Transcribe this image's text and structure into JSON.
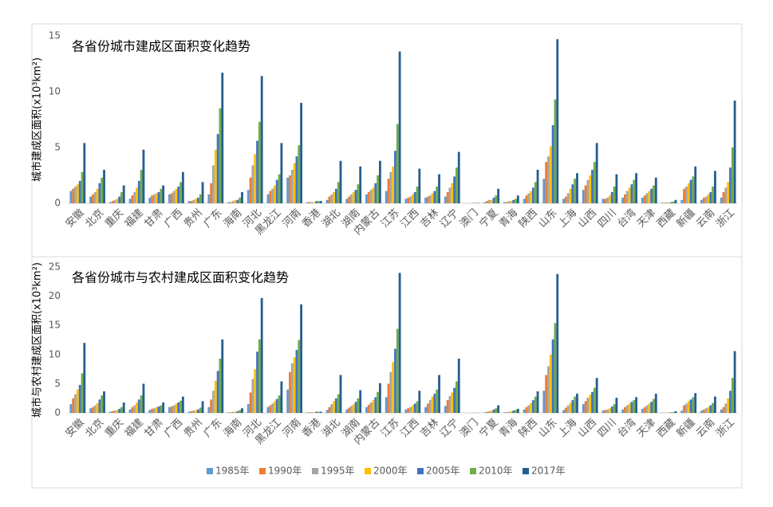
{
  "chart_data": [
    {
      "type": "bar",
      "title": "各省份城市建成区面积变化趋势",
      "y_label": "城市建成区面积(x10³km²)",
      "categories": [
        "安徽",
        "北京",
        "重庆",
        "福建",
        "甘肃",
        "广西",
        "贵州",
        "广东",
        "海南",
        "河北",
        "黑龙江",
        "河南",
        "香港",
        "湖北",
        "湖南",
        "内蒙古",
        "江苏",
        "江西",
        "吉林",
        "辽宁",
        "澳门",
        "宁夏",
        "青海",
        "陕西",
        "山东",
        "上海",
        "山西",
        "四川",
        "台湾",
        "天津",
        "西藏",
        "新疆",
        "云南",
        "浙江"
      ],
      "ylim": [
        0,
        15
      ],
      "yticks": [
        0,
        5,
        10,
        15
      ],
      "series": [
        {
          "color": "#5b9bd5",
          "values": [
            1.1,
            0.6,
            0.1,
            0.4,
            0.5,
            0.8,
            0.2,
            0.8,
            0.1,
            1.2,
            0.8,
            2.3,
            0.1,
            0.3,
            0.4,
            0.8,
            1.1,
            0.4,
            0.5,
            0.6,
            0.01,
            0.1,
            0.1,
            0.4,
            2.2,
            0.4,
            1.2,
            0.4,
            0.5,
            0.5,
            0.05,
            0.3,
            0.3,
            0.5
          ]
        },
        {
          "color": "#ed7d31",
          "values": [
            1.3,
            0.8,
            0.2,
            0.7,
            0.7,
            0.9,
            0.2,
            1.8,
            0.1,
            2.3,
            1.1,
            2.5,
            0.1,
            0.6,
            0.6,
            1.0,
            2.2,
            0.5,
            0.6,
            1.0,
            0.01,
            0.2,
            0.1,
            0.7,
            3.7,
            0.6,
            1.6,
            0.4,
            0.8,
            0.7,
            0.05,
            1.3,
            0.5,
            1.0
          ]
        },
        {
          "color": "#a5a5a5",
          "values": [
            1.5,
            1.0,
            0.3,
            1.0,
            0.8,
            1.1,
            0.3,
            3.4,
            0.2,
            3.4,
            1.3,
            3.0,
            0.1,
            0.8,
            0.8,
            1.2,
            2.8,
            0.6,
            0.7,
            1.4,
            0.02,
            0.3,
            0.2,
            0.9,
            4.2,
            0.9,
            2.1,
            0.5,
            1.1,
            0.9,
            0.07,
            1.5,
            0.6,
            1.4
          ]
        },
        {
          "color": "#ffc000",
          "values": [
            1.7,
            1.3,
            0.4,
            1.4,
            0.9,
            1.3,
            0.4,
            4.8,
            0.3,
            4.4,
            1.6,
            3.6,
            0.1,
            1.0,
            1.0,
            1.4,
            3.3,
            0.8,
            0.9,
            1.8,
            0.02,
            0.3,
            0.2,
            1.1,
            5.1,
            1.3,
            2.5,
            0.7,
            1.4,
            1.1,
            0.08,
            1.8,
            0.8,
            1.9
          ]
        },
        {
          "color": "#4472c4",
          "values": [
            2.0,
            1.8,
            0.6,
            2.0,
            1.0,
            1.5,
            0.5,
            6.2,
            0.3,
            5.6,
            2.1,
            4.2,
            0.2,
            1.3,
            1.2,
            1.8,
            4.7,
            1.0,
            1.1,
            2.4,
            0.03,
            0.5,
            0.3,
            1.4,
            7.0,
            1.7,
            3.0,
            1.0,
            1.7,
            1.3,
            0.1,
            2.1,
            1.0,
            3.2
          ]
        },
        {
          "color": "#70ad47",
          "values": [
            2.8,
            2.3,
            1.0,
            3.0,
            1.3,
            1.9,
            0.8,
            8.5,
            0.5,
            7.3,
            2.6,
            5.2,
            0.2,
            1.9,
            1.7,
            2.5,
            7.1,
            1.5,
            1.5,
            3.2,
            0.03,
            0.7,
            0.4,
            1.9,
            9.3,
            2.2,
            3.7,
            1.5,
            2.1,
            1.6,
            0.15,
            2.4,
            1.5,
            5.0
          ]
        },
        {
          "color": "#255e91",
          "values": [
            5.4,
            3.0,
            1.6,
            4.8,
            1.6,
            2.8,
            1.9,
            11.7,
            1.0,
            11.4,
            5.4,
            9.0,
            0.2,
            3.8,
            3.3,
            3.8,
            13.6,
            3.1,
            2.6,
            4.6,
            0.03,
            1.3,
            0.7,
            3.0,
            14.7,
            2.7,
            5.4,
            2.6,
            2.7,
            2.3,
            0.3,
            3.3,
            2.9,
            9.2
          ]
        }
      ]
    },
    {
      "type": "bar",
      "title": "各省份城市与农村建成区面积变化趋势",
      "y_label": "城市与农村建成区面积(x10³km²)",
      "categories": [
        "安徽",
        "北京",
        "重庆",
        "福建",
        "甘肃",
        "广西",
        "贵州",
        "广东",
        "海南",
        "河北",
        "黑龙江",
        "河南",
        "香港",
        "湖北",
        "湖南",
        "内蒙古",
        "江苏",
        "江西",
        "吉林",
        "辽宁",
        "澳门",
        "宁夏",
        "青海",
        "陕西",
        "山东",
        "上海",
        "山西",
        "四川",
        "台湾",
        "天津",
        "西藏",
        "新疆",
        "云南",
        "浙江"
      ],
      "ylim": [
        0,
        25
      ],
      "yticks": [
        0,
        5,
        10,
        15,
        20,
        25
      ],
      "series": [
        {
          "name": "1985年",
          "color": "#5b9bd5",
          "values": [
            1.5,
            0.8,
            0.2,
            0.6,
            0.5,
            1.0,
            0.2,
            1.0,
            0.1,
            1.5,
            1.0,
            4.0,
            0.1,
            0.5,
            0.6,
            1.0,
            2.7,
            0.6,
            1.0,
            1.2,
            0.01,
            0.1,
            0.1,
            0.6,
            3.8,
            0.5,
            1.5,
            0.4,
            0.6,
            0.7,
            0.05,
            0.4,
            0.4,
            0.6
          ]
        },
        {
          "name": "1990年",
          "color": "#ed7d31",
          "values": [
            2.5,
            1.0,
            0.3,
            1.0,
            0.7,
            1.1,
            0.3,
            2.3,
            0.1,
            3.5,
            1.3,
            7.0,
            0.1,
            1.0,
            0.9,
            1.4,
            5.0,
            0.8,
            1.6,
            2.2,
            0.01,
            0.2,
            0.1,
            1.0,
            6.5,
            0.9,
            2.0,
            0.5,
            1.0,
            1.0,
            0.05,
            1.3,
            0.6,
            1.0
          ]
        },
        {
          "name": "1995年",
          "color": "#a5a5a5",
          "values": [
            3.2,
            1.3,
            0.4,
            1.3,
            0.8,
            1.3,
            0.4,
            3.8,
            0.2,
            5.8,
            1.6,
            8.5,
            0.1,
            1.5,
            1.2,
            1.8,
            7.0,
            1.0,
            2.2,
            2.9,
            0.02,
            0.3,
            0.2,
            1.3,
            8.0,
            1.3,
            2.6,
            0.6,
            1.3,
            1.3,
            0.07,
            1.6,
            0.8,
            1.6
          ]
        },
        {
          "name": "2000年",
          "color": "#ffc000",
          "values": [
            4.0,
            1.7,
            0.5,
            1.8,
            1.0,
            1.6,
            0.5,
            5.5,
            0.2,
            7.5,
            2.0,
            9.5,
            0.1,
            2.0,
            1.5,
            2.2,
            8.7,
            1.3,
            2.8,
            3.5,
            0.02,
            0.4,
            0.3,
            1.7,
            10.0,
            1.7,
            3.1,
            0.8,
            1.6,
            1.6,
            0.08,
            2.0,
            1.0,
            2.5
          ]
        },
        {
          "name": "2005年",
          "color": "#4472c4",
          "values": [
            4.8,
            2.3,
            0.7,
            2.3,
            1.1,
            1.8,
            0.6,
            7.2,
            0.3,
            10.5,
            2.4,
            10.8,
            0.2,
            2.5,
            1.9,
            2.7,
            11.0,
            1.6,
            3.3,
            4.3,
            0.03,
            0.6,
            0.4,
            2.2,
            12.6,
            2.2,
            3.6,
            1.1,
            1.9,
            1.9,
            0.1,
            2.3,
            1.3,
            3.8
          ]
        },
        {
          "name": "2010年",
          "color": "#70ad47",
          "values": [
            6.8,
            3.0,
            1.0,
            3.0,
            1.3,
            2.1,
            0.9,
            9.3,
            0.5,
            12.6,
            3.0,
            12.5,
            0.2,
            3.2,
            2.5,
            3.6,
            14.4,
            2.0,
            4.0,
            5.4,
            0.03,
            0.8,
            0.5,
            2.8,
            15.4,
            2.8,
            4.3,
            1.5,
            2.2,
            2.4,
            0.15,
            2.7,
            1.7,
            6.0
          ]
        },
        {
          "name": "2017年",
          "color": "#255e91",
          "values": [
            12.0,
            3.7,
            1.8,
            5.0,
            1.8,
            2.8,
            2.0,
            12.6,
            0.8,
            19.7,
            5.4,
            18.6,
            0.2,
            6.5,
            3.9,
            5.1,
            24.0,
            3.8,
            6.5,
            9.3,
            0.03,
            1.3,
            0.7,
            3.7,
            23.8,
            3.3,
            6.0,
            2.6,
            2.7,
            3.3,
            0.3,
            3.4,
            2.8,
            10.6
          ]
        }
      ]
    }
  ]
}
